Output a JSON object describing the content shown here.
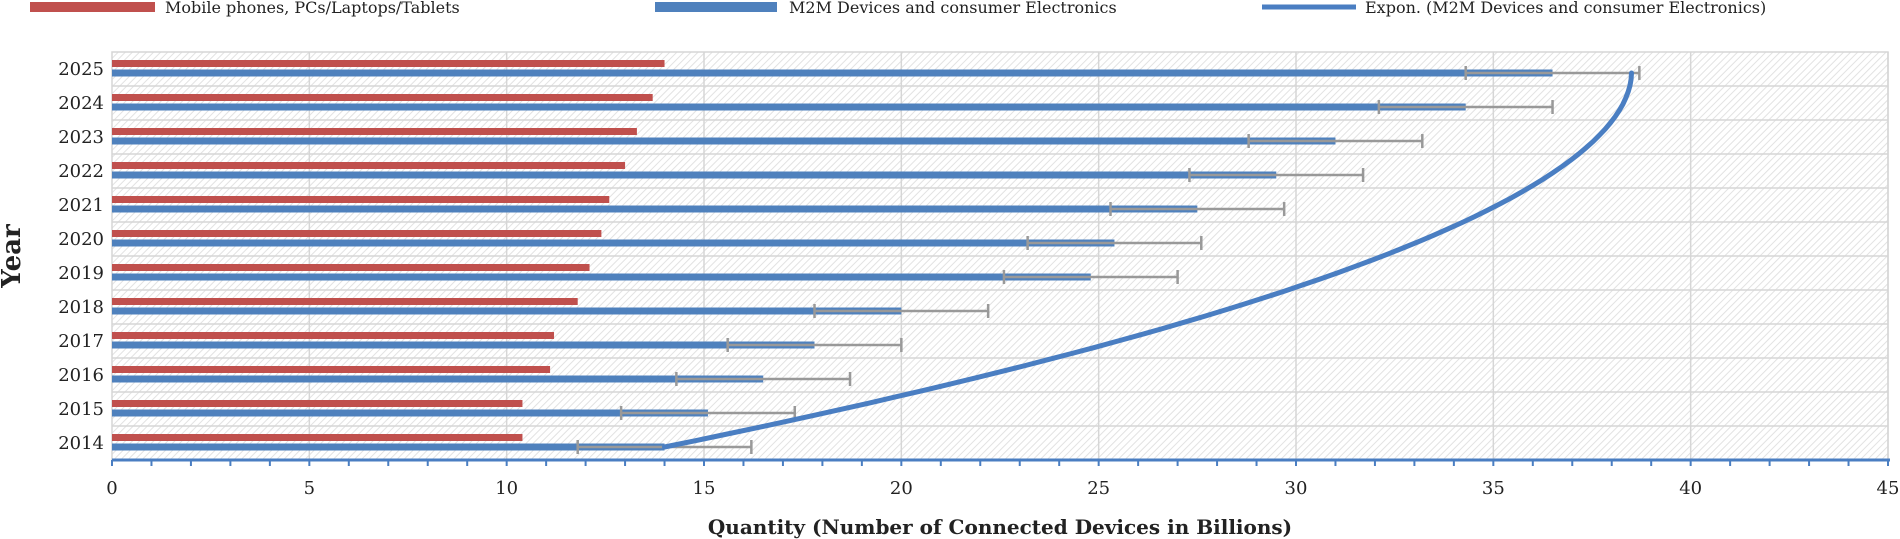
{
  "chart_data": {
    "type": "bar",
    "orientation": "horizontal",
    "title": "",
    "xlabel": "Quantity (Number of Connected Devices in Billions)",
    "ylabel": "Year",
    "xlim": [
      0,
      45
    ],
    "x_ticks": [
      0,
      5,
      10,
      15,
      20,
      25,
      30,
      35,
      40,
      45
    ],
    "categories": [
      "2014",
      "2015",
      "2016",
      "2017",
      "2018",
      "2019",
      "2020",
      "2021",
      "2022",
      "2023",
      "2024",
      "2025"
    ],
    "series": [
      {
        "name": "Mobile phones, PCs/Laptops/Tablets",
        "color": "#c0504d",
        "values": [
          10.4,
          10.4,
          11.1,
          11.2,
          11.8,
          12.1,
          12.4,
          12.6,
          13.0,
          13.3,
          13.7,
          14.0
        ]
      },
      {
        "name": "M2M Devices and consumer Electronics",
        "color": "#4f81bd",
        "values": [
          14.0,
          15.1,
          16.5,
          17.8,
          20.0,
          24.8,
          25.4,
          27.5,
          29.5,
          31.0,
          34.3,
          36.5
        ],
        "error": [
          2.2,
          2.2,
          2.2,
          2.2,
          2.2,
          2.2,
          2.2,
          2.2,
          2.2,
          2.2,
          2.2,
          2.2
        ],
        "error_color": "#999999"
      }
    ],
    "trendline": {
      "name": "Expon. (M2M Devices and consumer Electronics)",
      "type": "exponential",
      "color": "#4a7ec2",
      "from": 14.0,
      "to": 38.5,
      "growth": 1.094
    },
    "grid": true,
    "legend": "top"
  }
}
